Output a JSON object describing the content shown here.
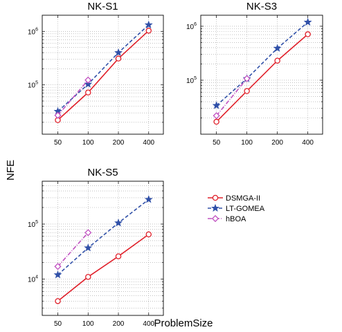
{
  "figure": {
    "ylabel": "NFE",
    "xlabel": "ProblemSize"
  },
  "legend": {
    "placement": "right of bottom-left chart",
    "items": [
      {
        "label": "DSMGA-II",
        "color": "#e0202a",
        "marker": "circle",
        "dash": "solid"
      },
      {
        "label": "LT-GOMEA",
        "color": "#3050a8",
        "marker": "star",
        "dash": "dashed"
      },
      {
        "label": "hBOA",
        "color": "#c050c0",
        "marker": "diamond",
        "dash": "dashdot"
      }
    ]
  },
  "chart_data": [
    {
      "type": "line",
      "title": "NK-S1",
      "xscale": "log",
      "yscale": "log",
      "x_ticks": [
        "50",
        "100",
        "200",
        "400"
      ],
      "y_ticks": [
        {
          "base": "10",
          "exp": "5"
        },
        {
          "base": "10",
          "exp": "6"
        }
      ],
      "xlim": [
        35,
        560
      ],
      "ylim": [
        12000,
        2000000
      ],
      "grid": true,
      "series": [
        {
          "name": "DSMGA-II",
          "x": [
            50,
            100,
            200,
            400
          ],
          "values": [
            22000,
            72000,
            310000,
            1030000
          ]
        },
        {
          "name": "LT-GOMEA",
          "x": [
            50,
            100,
            200,
            400
          ],
          "values": [
            32000,
            103000,
            400000,
            1320000
          ]
        },
        {
          "name": "hBOA",
          "x": [
            50,
            100
          ],
          "values": [
            27000,
            123000
          ]
        }
      ]
    },
    {
      "type": "line",
      "title": "NK-S3",
      "xscale": "log",
      "yscale": "log",
      "x_ticks": [
        "50",
        "100",
        "200",
        "400"
      ],
      "y_ticks": [
        {
          "base": "10",
          "exp": "5"
        },
        {
          "base": "10",
          "exp": "6"
        }
      ],
      "xlim": [
        35,
        560
      ],
      "ylim": [
        10000,
        1600000
      ],
      "grid": true,
      "series": [
        {
          "name": "DSMGA-II",
          "x": [
            50,
            100,
            200,
            400
          ],
          "values": [
            17000,
            63000,
            230000,
            710000
          ]
        },
        {
          "name": "LT-GOMEA",
          "x": [
            50,
            100,
            200,
            400
          ],
          "values": [
            34000,
            107000,
            390000,
            1190000
          ]
        },
        {
          "name": "hBOA",
          "x": [
            50,
            100
          ],
          "values": [
            22000,
            107000
          ]
        }
      ]
    },
    {
      "type": "line",
      "title": "NK-S5",
      "xscale": "log",
      "yscale": "log",
      "x_ticks": [
        "50",
        "100",
        "200",
        "400"
      ],
      "y_ticks": [
        {
          "base": "10",
          "exp": "4"
        },
        {
          "base": "10",
          "exp": "5"
        }
      ],
      "xlim": [
        35,
        560
      ],
      "ylim": [
        2200,
        600000
      ],
      "grid": true,
      "series": [
        {
          "name": "DSMGA-II",
          "x": [
            50,
            100,
            200,
            400
          ],
          "values": [
            4000,
            11000,
            26000,
            65000
          ]
        },
        {
          "name": "LT-GOMEA",
          "x": [
            50,
            100,
            200,
            400
          ],
          "values": [
            12000,
            37000,
            105000,
            280000
          ]
        },
        {
          "name": "hBOA",
          "x": [
            50,
            100
          ],
          "values": [
            17000,
            70000
          ]
        }
      ]
    }
  ]
}
